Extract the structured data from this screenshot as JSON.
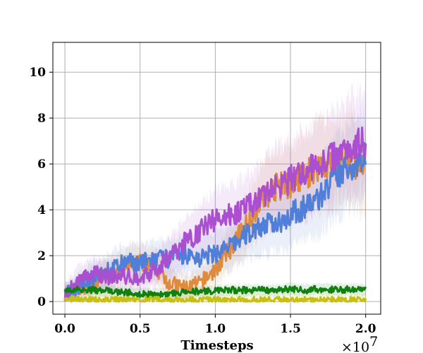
{
  "chart_data": {
    "type": "line",
    "title": "",
    "xlabel": "Timesteps",
    "ylabel": "",
    "x_scale_label": "×10",
    "x_scale_exponent": "7",
    "xlim": [
      -0.08,
      2.1
    ],
    "ylim": [
      -0.55,
      11.3
    ],
    "xticks": [
      0.0,
      0.5,
      1.0,
      1.5,
      2.0
    ],
    "xtick_labels": [
      "0.0",
      "0.5",
      "1.0",
      "1.5",
      "2.0"
    ],
    "yticks": [
      0,
      2,
      4,
      6,
      8,
      10
    ],
    "ytick_labels": [
      "0",
      "2",
      "4",
      "6",
      "8",
      "10"
    ],
    "grid": true,
    "legend": "none",
    "shaded_variance": true,
    "series": [
      {
        "color": "#e08a3c",
        "x": [
          0.0,
          0.1,
          0.2,
          0.3,
          0.4,
          0.5,
          0.6,
          0.7,
          0.8,
          0.9,
          1.0,
          1.1,
          1.2,
          1.3,
          1.4,
          1.5,
          1.6,
          1.7,
          1.8,
          1.9,
          2.0
        ],
        "y": [
          0.3,
          0.5,
          0.9,
          1.2,
          1.5,
          1.7,
          1.5,
          0.8,
          0.6,
          0.8,
          1.4,
          2.3,
          3.3,
          4.4,
          5.0,
          5.1,
          5.5,
          6.0,
          6.0,
          6.2,
          5.6
        ]
      },
      {
        "color": "#4f7fd8",
        "x": [
          0.0,
          0.1,
          0.2,
          0.3,
          0.4,
          0.5,
          0.6,
          0.7,
          0.8,
          0.9,
          1.0,
          1.1,
          1.2,
          1.3,
          1.4,
          1.5,
          1.6,
          1.7,
          1.8,
          1.9,
          2.0
        ],
        "y": [
          0.3,
          0.7,
          1.1,
          1.4,
          1.7,
          1.7,
          1.8,
          1.9,
          2.0,
          1.9,
          2.1,
          2.4,
          2.9,
          3.3,
          3.4,
          3.8,
          4.1,
          4.6,
          5.4,
          5.9,
          6.3
        ]
      },
      {
        "color": "#aa4fd0",
        "x": [
          0.0,
          0.1,
          0.2,
          0.3,
          0.4,
          0.5,
          0.6,
          0.7,
          0.8,
          0.9,
          1.0,
          1.1,
          1.2,
          1.3,
          1.4,
          1.5,
          1.6,
          1.7,
          1.8,
          1.9,
          2.0
        ],
        "y": [
          0.3,
          1.0,
          1.2,
          1.1,
          1.1,
          1.0,
          1.4,
          2.0,
          2.6,
          3.1,
          3.6,
          3.8,
          4.0,
          4.5,
          5.0,
          5.3,
          5.7,
          6.0,
          6.4,
          6.8,
          7.0
        ]
      },
      {
        "color": "#108010",
        "x": [
          0.0,
          0.1,
          0.2,
          0.3,
          0.4,
          0.5,
          0.6,
          0.7,
          0.8,
          0.9,
          1.0,
          1.1,
          1.2,
          1.3,
          1.4,
          1.5,
          1.6,
          1.7,
          1.8,
          1.9,
          2.0
        ],
        "y": [
          0.45,
          0.55,
          0.5,
          0.45,
          0.4,
          0.35,
          0.3,
          0.35,
          0.4,
          0.45,
          0.45,
          0.5,
          0.5,
          0.5,
          0.5,
          0.55,
          0.5,
          0.55,
          0.5,
          0.55,
          0.5
        ]
      },
      {
        "color": "#c8c010",
        "x": [
          0.0,
          0.1,
          0.2,
          0.3,
          0.4,
          0.5,
          0.6,
          0.7,
          0.8,
          0.9,
          1.0,
          1.1,
          1.2,
          1.3,
          1.4,
          1.5,
          1.6,
          1.7,
          1.8,
          1.9,
          2.0
        ],
        "y": [
          0.15,
          0.1,
          0.08,
          0.08,
          0.08,
          0.08,
          0.08,
          0.08,
          0.08,
          0.08,
          0.08,
          0.08,
          0.08,
          0.08,
          0.08,
          0.08,
          0.08,
          0.08,
          0.08,
          0.08,
          0.08
        ]
      }
    ]
  }
}
